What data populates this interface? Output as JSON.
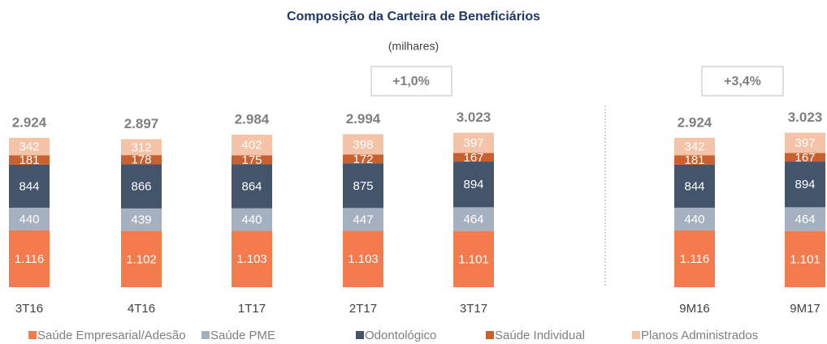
{
  "chart_data": {
    "type": "stacked_bar",
    "title": "Composição da Carteira de Beneficiários",
    "subtitle": "(milhares)",
    "categories": [
      "3T16",
      "4T16",
      "1T17",
      "2T17",
      "3T17",
      "9M16",
      "9M17"
    ],
    "series": [
      {
        "name": "Saúde Empresarial/Adesão",
        "color": "#f47b4d",
        "values": [
          1116,
          1102,
          1103,
          1103,
          1101,
          1116,
          1101
        ],
        "value_labels": [
          "1.116",
          "1.102",
          "1.103",
          "1.103",
          "1.101",
          "1.116",
          "1.101"
        ]
      },
      {
        "name": "Saúde PME",
        "color": "#a5b0c0",
        "values": [
          440,
          439,
          440,
          447,
          464,
          440,
          464
        ]
      },
      {
        "name": "Odontológico",
        "color": "#44546a",
        "values": [
          844,
          866,
          864,
          875,
          894,
          844,
          894
        ]
      },
      {
        "name": "Saúde Individual",
        "color": "#c8602f",
        "values": [
          181,
          178,
          175,
          172,
          167,
          181,
          167
        ]
      },
      {
        "name": "Planos Administrados",
        "color": "#f4c3a8",
        "values": [
          342,
          312,
          402,
          398,
          397,
          342,
          397
        ]
      }
    ],
    "totals": {
      "values": [
        2924,
        2897,
        2984,
        2994,
        3023,
        2924,
        3023
      ],
      "value_labels": [
        "2.924",
        "2.897",
        "2.984",
        "2.994",
        "3.023",
        "2.924",
        "3.023"
      ]
    },
    "annotations": [
      "+1,0%",
      "+3,4%"
    ]
  }
}
